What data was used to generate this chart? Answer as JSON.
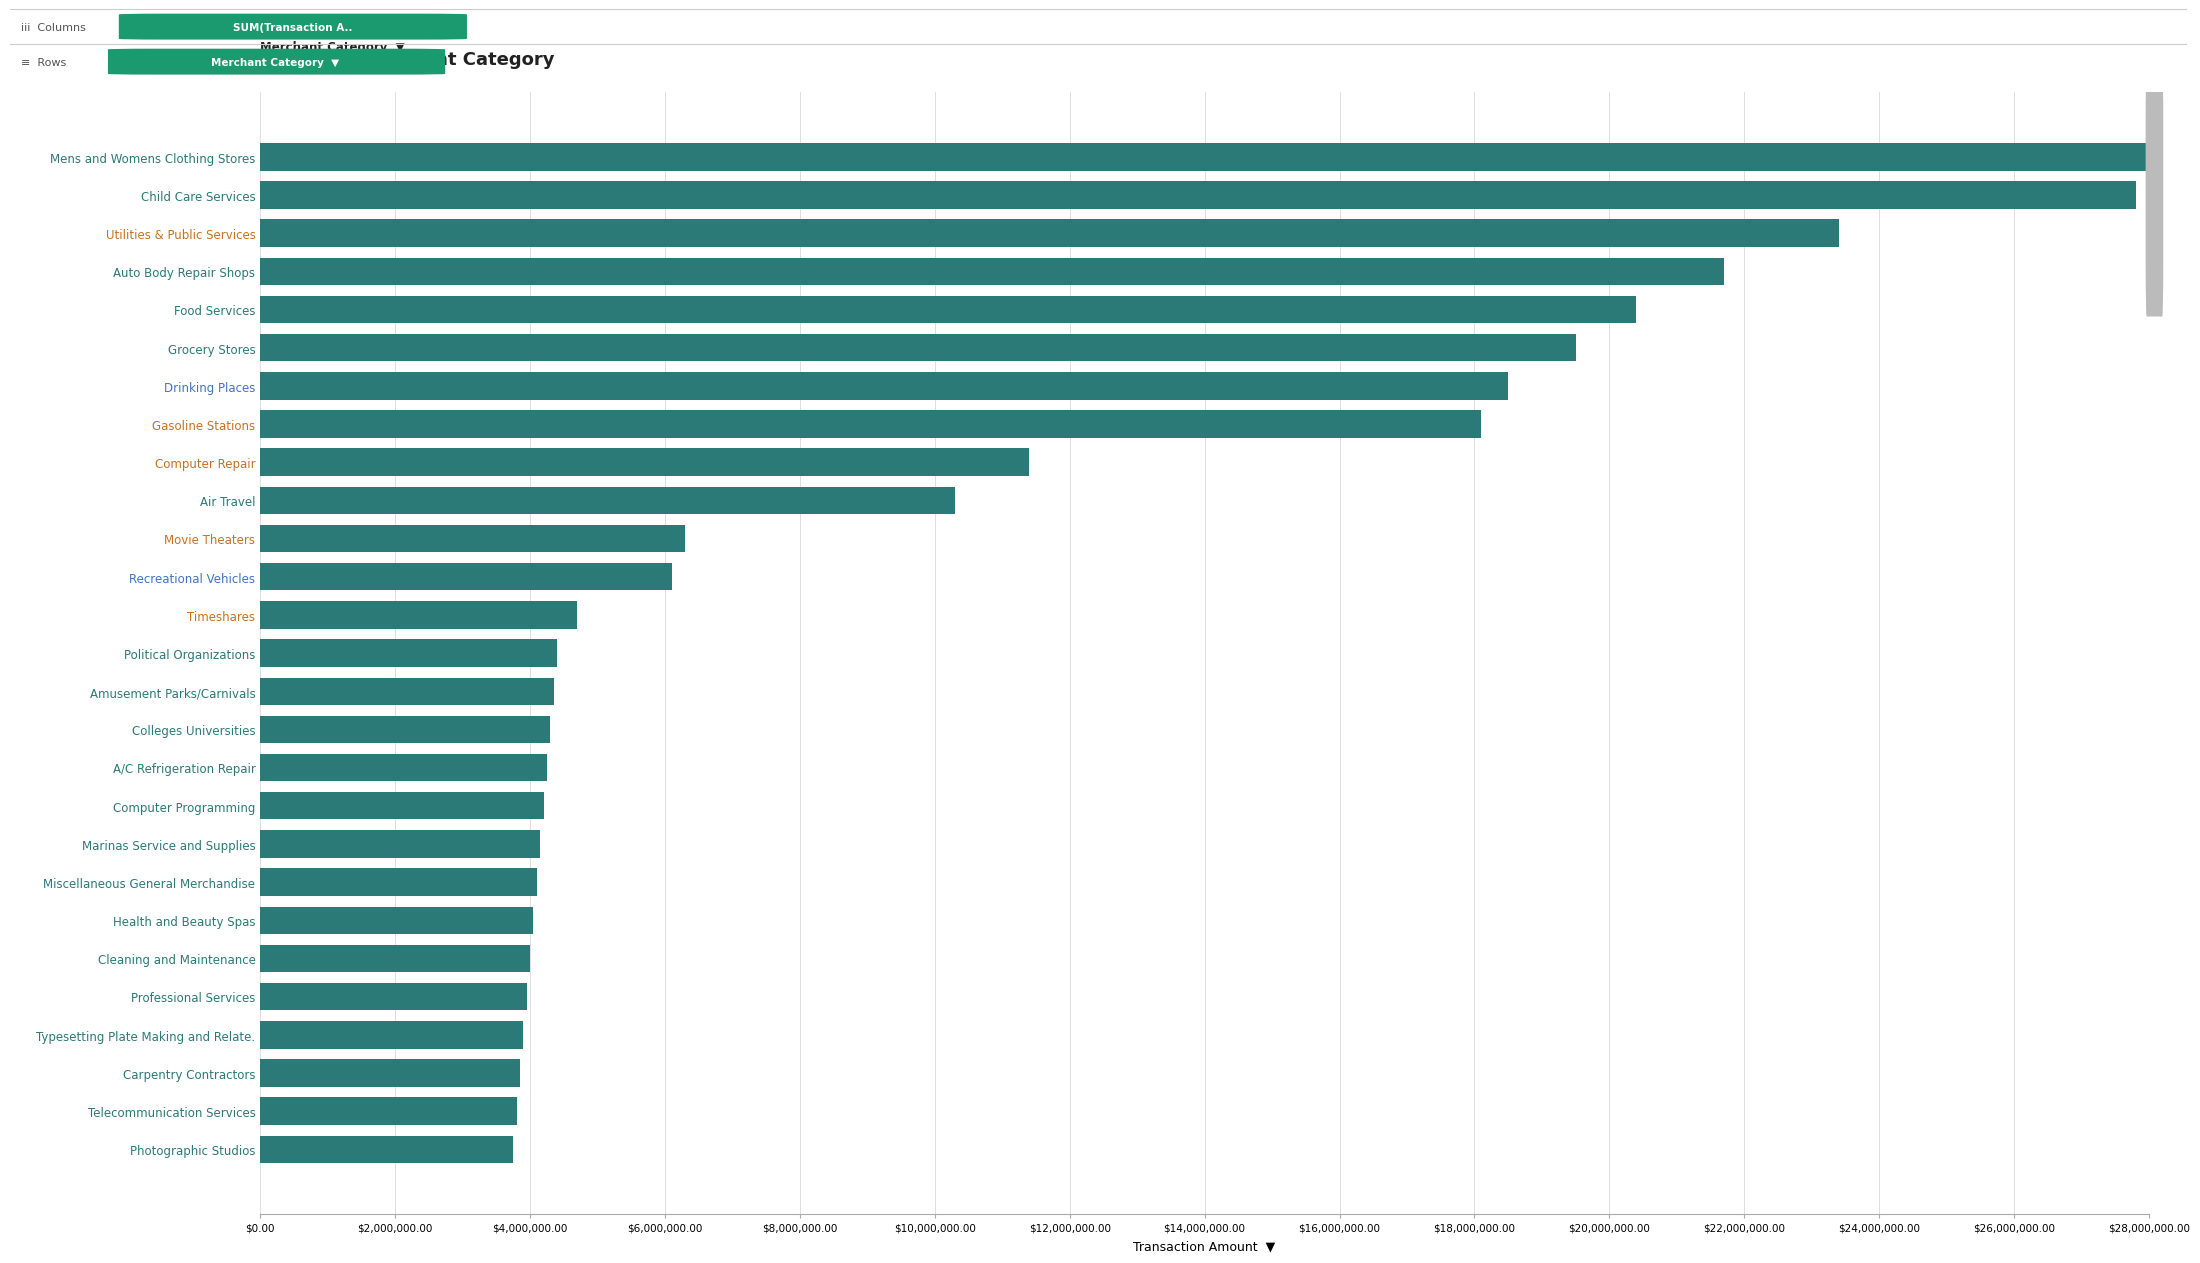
{
  "title": "Spend by Merchant Category",
  "xlabel": "Transaction Amount",
  "ylabel": "Merchant Category",
  "bar_color": "#2b7a78",
  "background_color": "#ffffff",
  "grid_color": "#d8d8d8",
  "panel_bg": "#f4f4f4",
  "categories": [
    "Mens and Womens Clothing Stores",
    "Child Care Services",
    "Utilities & Public Services",
    "Auto Body Repair Shops",
    "Food Services",
    "Grocery Stores",
    "Drinking Places",
    "Gasoline Stations",
    "Computer Repair",
    "Air Travel",
    "Movie Theaters",
    "Recreational Vehicles",
    "Timeshares",
    "Political Organizations",
    "Amusement Parks/Carnivals",
    "Colleges Universities",
    "A/C Refrigeration Repair",
    "Computer Programming",
    "Marinas Service and Supplies",
    "Miscellaneous General Merchandise",
    "Health and Beauty Spas",
    "Cleaning and Maintenance",
    "Professional Services",
    "Typesetting Plate Making and Relate.",
    "Carpentry Contractors",
    "Telecommunication Services",
    "Photographic Studios"
  ],
  "values": [
    28100000,
    27800000,
    23400000,
    21700000,
    20400000,
    19500000,
    18500000,
    18100000,
    11400000,
    10300000,
    6300000,
    6100000,
    4700000,
    4400000,
    4350000,
    4300000,
    4250000,
    4200000,
    4150000,
    4100000,
    4050000,
    4000000,
    3950000,
    3900000,
    3850000,
    3800000,
    3750000
  ],
  "xlim": [
    0,
    28000000
  ],
  "xtick_values": [
    0,
    2000000,
    4000000,
    6000000,
    8000000,
    10000000,
    12000000,
    14000000,
    16000000,
    18000000,
    20000000,
    22000000,
    24000000,
    26000000,
    28000000
  ],
  "xtick_labels": [
    "$0.00",
    "$2,000,000.00",
    "$4,000,000.00",
    "$6,000,000.00",
    "$8,000,000.00",
    "$10,000,000.00",
    "$12,000,000.00",
    "$14,000,000.00",
    "$16,000,000.00",
    "$18,000,000.00",
    "$20,000,000.00",
    "$22,000,000.00",
    "$24,000,000.00",
    "$26,000,000.00",
    "$28,000,000.00"
  ],
  "label_colors": [
    "#2b7a78",
    "#2b7a78",
    "#c9711c",
    "#2b7a78",
    "#2b7a78",
    "#2b7a78",
    "#4472c4",
    "#c9711c",
    "#c9711c",
    "#2b7a78",
    "#c9711c",
    "#4472c4",
    "#c9711c",
    "#2b7a78",
    "#2b7a78",
    "#2b7a78",
    "#2b7a78",
    "#2b7a78",
    "#2b7a78",
    "#2b7a78",
    "#2b7a78",
    "#2b7a78",
    "#2b7a78",
    "#2b7a78",
    "#2b7a78",
    "#2b7a78",
    "#2b7a78"
  ],
  "ui_bg": "#f0f0f0",
  "ui_border": "#cccccc",
  "pill_color": "#1a9a6e",
  "pill_text": "#ffffff",
  "col_pill_text": "SUM(Transaction A..",
  "row_pill_text": "Merchant Category",
  "col_icon": "iii",
  "row_icon": "=",
  "header_text_color": "#333333"
}
